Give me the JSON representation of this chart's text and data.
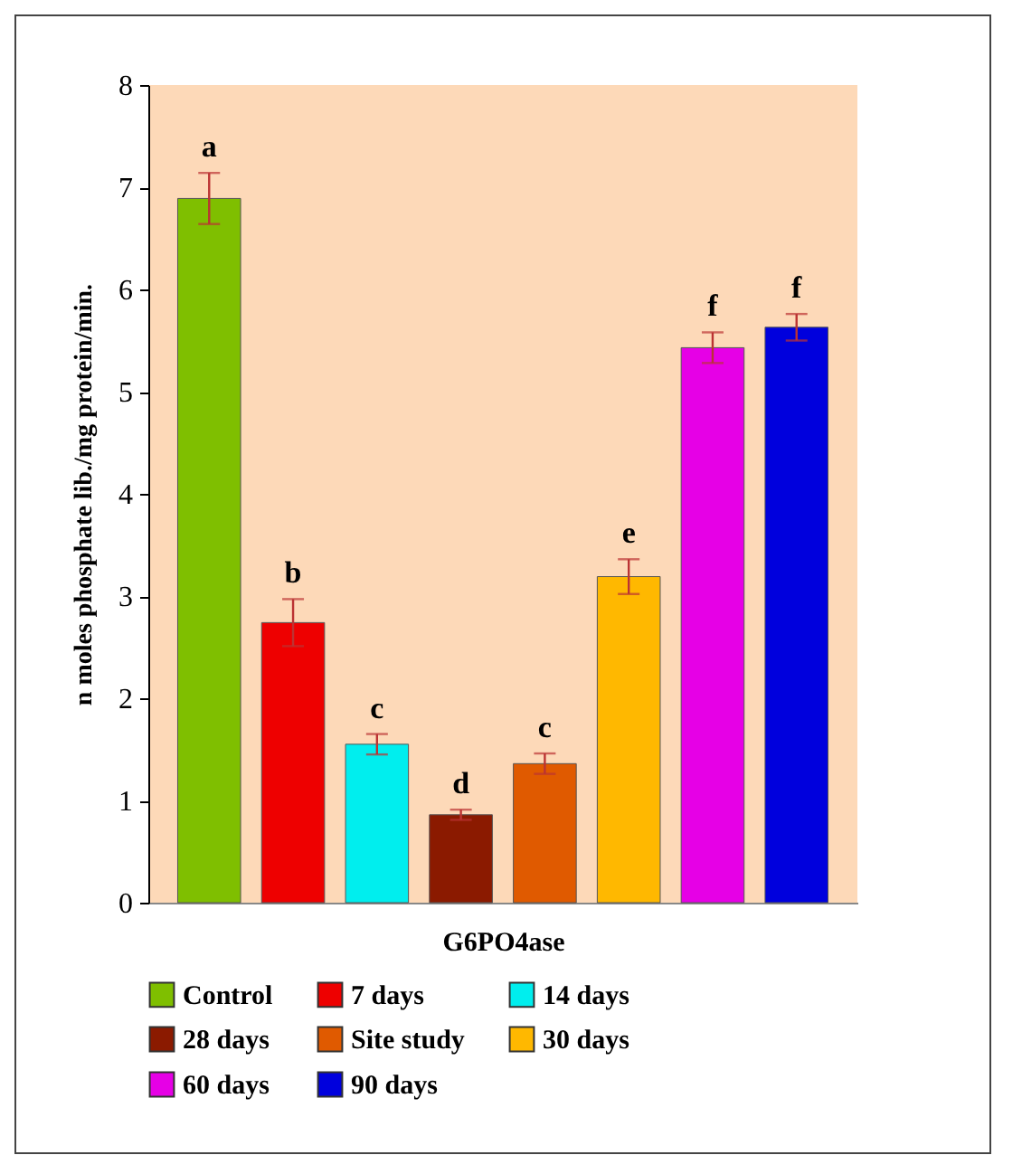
{
  "chart_data": {
    "type": "bar",
    "xlabel": "G6PO4ase",
    "ylabel": "n moles phosphate lib./mg protein/min.",
    "categories": [
      null
    ],
    "series": [
      {
        "name": "Control",
        "color": "#7fbf00",
        "values": [
          6.89
        ],
        "errors": [
          0.25
        ]
      },
      {
        "name": "7 days",
        "color": "#ee0000",
        "values": [
          2.74
        ],
        "errors": [
          0.23
        ]
      },
      {
        "name": "14 days",
        "color": "#00eeee",
        "values": [
          1.55
        ],
        "errors": [
          0.1
        ]
      },
      {
        "name": "28 days",
        "color": "#8b1a00",
        "values": [
          0.86
        ],
        "errors": [
          0.05
        ]
      },
      {
        "name": "Site study",
        "color": "#e05a00",
        "values": [
          1.36
        ],
        "errors": [
          0.1
        ]
      },
      {
        "name": "30 days",
        "color": "#ffb800",
        "values": [
          3.19
        ],
        "errors": [
          0.17
        ]
      },
      {
        "name": "60 days",
        "color": "#e600e6",
        "values": [
          5.43
        ],
        "errors": [
          0.15
        ]
      },
      {
        "name": "90 days",
        "color": "#0000dd",
        "values": [
          5.63
        ],
        "errors": [
          0.13
        ]
      }
    ],
    "annotations": [
      "a",
      "b",
      "c",
      "d",
      "c",
      "e",
      "f",
      "f"
    ],
    "ylim": [
      0,
      8
    ],
    "yticks": [
      0,
      1,
      2,
      3,
      4,
      5,
      6,
      7,
      8
    ],
    "legend": "bottom"
  }
}
